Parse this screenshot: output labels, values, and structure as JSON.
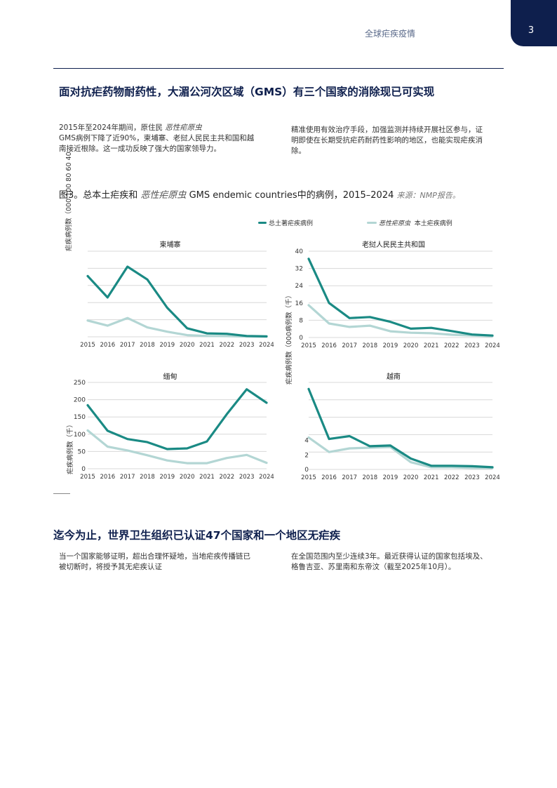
{
  "header": {
    "section": "全球疟疾疫情",
    "page_number": "3"
  },
  "section1": {
    "heading": "面对抗疟药物耐药性，大湄公河次区域（GMS）有三个国家的消除现已可实现",
    "left_para": {
      "pre": "2015年至2024年期间，原住民 ",
      "italic": "恶性疟原虫",
      "line2": "GMS病例下降了近90%，柬埔寨、老挝人民民主共和国和越",
      "line3": "南接近根除。这一成功反映了强大的国家领导力。"
    },
    "right_para": {
      "line1": "精准使用有效治疗手段，加强监测并持续开展社区参与，证",
      "line2": "明即使在长期受抗疟药耐药性影响的地区，也能实现疟疾消",
      "line3": "除。"
    }
  },
  "figure": {
    "title_pre": "图3。总本土疟疾和",
    "title_italic": "恶性疟原虫",
    "title_post": "GMS endemic countries中的病例，2015–2024",
    "source": "来源：NMP报告。",
    "left_axis_label_overlap": "疟疾病例数（000 100 80 60 40",
    "axis_label_burma": "疟疾病例数（千）",
    "axis_label_right": "疟疾病例数（000病例数（千）",
    "legend": {
      "total": "总土著疟疾病例",
      "pf_italic": "恶性疟原虫",
      "pf_rest": "本土疟疾病例"
    },
    "colors": {
      "total": "#1a8a84",
      "pf": "#b3d6d4",
      "grid": "#d8d8d8"
    }
  },
  "chart_data": [
    {
      "type": "line",
      "title": "柬埔寨",
      "x": [
        2015,
        2016,
        2017,
        2018,
        2019,
        2020,
        2021,
        2022,
        2023,
        2024
      ],
      "series": [
        {
          "name": "总土著疟疾病例",
          "values": [
            71,
            46,
            82,
            67,
            34,
            10,
            4,
            3.5,
            1,
            0.5
          ]
        },
        {
          "name": "恶性疟原虫本土疟疾病例",
          "values": [
            19,
            13,
            22,
            11,
            6,
            2,
            1,
            0.8,
            0.3,
            0.2
          ]
        }
      ],
      "ylim": [
        0,
        100
      ],
      "yticks": [],
      "grid": true
    },
    {
      "type": "line",
      "title": "老挝人民民主共和国",
      "x": [
        2015,
        2016,
        2017,
        2018,
        2019,
        2020,
        2021,
        2022,
        2023,
        2024
      ],
      "series": [
        {
          "name": "总土著疟疾病例",
          "values": [
            36.5,
            16,
            9,
            9.5,
            7.3,
            4.1,
            4.5,
            3,
            1.4,
            0.9
          ]
        },
        {
          "name": "恶性疟原虫本土疟疾病例",
          "values": [
            15,
            6.5,
            4.9,
            5.5,
            2.9,
            2.2,
            2,
            1.3,
            0.9,
            0.6
          ]
        }
      ],
      "ylim": [
        0,
        40
      ],
      "yticks": [
        0,
        8,
        16,
        24,
        32,
        40
      ],
      "grid": true
    },
    {
      "type": "line",
      "title": "缅甸",
      "x": [
        2015,
        2016,
        2017,
        2018,
        2019,
        2020,
        2021,
        2022,
        2023,
        2024
      ],
      "series": [
        {
          "name": "总土著疟疾病例",
          "values": [
            184,
            110,
            86,
            77,
            57,
            59,
            79,
            158,
            230,
            191
          ]
        },
        {
          "name": "恶性疟原虫本土疟疾病例",
          "values": [
            111,
            64,
            53,
            39,
            24,
            16,
            16,
            31,
            40,
            17
          ]
        }
      ],
      "ylim": [
        0,
        250
      ],
      "yticks": [
        0,
        50,
        100,
        150,
        200,
        250
      ],
      "grid": true
    },
    {
      "type": "line",
      "title": "越南",
      "x": [
        2015,
        2016,
        2017,
        2018,
        2019,
        2020,
        2021,
        2022,
        2023,
        2024
      ],
      "series": [
        {
          "name": "总土著疟疾病例",
          "values": [
            11.1,
            4.2,
            4.6,
            3.2,
            3.3,
            1.5,
            0.5,
            0.5,
            0.45,
            0.3
          ]
        },
        {
          "name": "恶性疟原虫本土疟疾病例",
          "values": [
            4.4,
            2.4,
            2.9,
            3.0,
            3.1,
            1.0,
            0.3,
            0.3,
            0.2,
            0.2
          ]
        }
      ],
      "ylim": [
        0,
        12
      ],
      "yticks": [
        0,
        2,
        4
      ],
      "grid": true
    }
  ],
  "section2": {
    "heading": "迄今为止，世界卫生组织已认证47个国家和一个地区无疟疾",
    "left_line1": "当一个国家能够证明，超出合理怀疑地，当地疟疾传播链已",
    "left_line2": "被切断时，将授予其无疟疾认证",
    "right_line1": "在全国范围内至少连续3年。最近获得认证的国家包括埃及、",
    "right_line2": "格鲁吉亚、苏里南和东帝汶（截至2025年10月）。"
  }
}
